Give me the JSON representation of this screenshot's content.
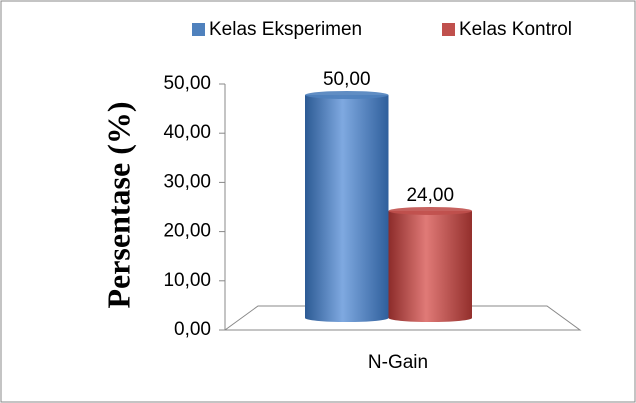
{
  "chart_data": {
    "type": "bar",
    "y_label": "Persentase (%)",
    "categories": [
      "N-Gain"
    ],
    "series": [
      {
        "name": "Kelas Eksperimen",
        "color": "#4f81bd",
        "values": [
          50
        ],
        "value_labels": [
          "50,00"
        ]
      },
      {
        "name": "Kelas Kontrol",
        "color": "#c0504d",
        "values": [
          24
        ],
        "value_labels": [
          "24,00"
        ]
      }
    ],
    "ylim": [
      0,
      50
    ],
    "yticks": [
      {
        "value": 0,
        "label": "0,00"
      },
      {
        "value": 10,
        "label": "10,00"
      },
      {
        "value": 20,
        "label": "20,00"
      },
      {
        "value": 30,
        "label": "30,00"
      },
      {
        "value": 40,
        "label": "40,00"
      },
      {
        "value": 50,
        "label": "50,00"
      }
    ],
    "legend": "top"
  }
}
